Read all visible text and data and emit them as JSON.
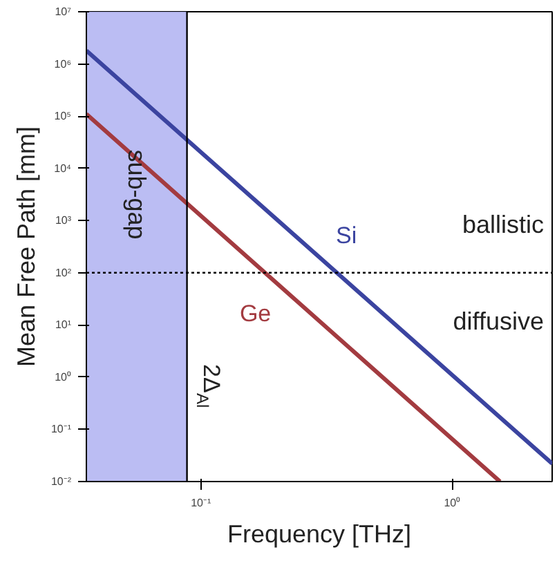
{
  "chart_data": {
    "type": "line",
    "xlabel": "Frequency [THz]",
    "ylabel": "Mean Free Path [mm]",
    "log": "xy",
    "grid": false,
    "line_style": "solid",
    "marker": "none",
    "xlim": [
      0.035,
      2.5
    ],
    "ylim": [
      0.01,
      10000000
    ],
    "xticks": [
      {
        "value": 0.1,
        "label": "10⁻¹"
      },
      {
        "value": 1,
        "label": "10⁰"
      }
    ],
    "yticks": [
      {
        "value": 0.01,
        "label": "10⁻²"
      },
      {
        "value": 0.1,
        "label": "10⁻¹"
      },
      {
        "value": 1,
        "label": "10⁰"
      },
      {
        "value": 10,
        "label": "10¹"
      },
      {
        "value": 100,
        "label": "10²"
      },
      {
        "value": 1000,
        "label": "10³"
      },
      {
        "value": 10000,
        "label": "10⁴"
      },
      {
        "value": 100000,
        "label": "10⁵"
      },
      {
        "value": 1000000,
        "label": "10⁶"
      },
      {
        "value": 10000000,
        "label": "10⁷"
      }
    ],
    "series": [
      {
        "name": "Si",
        "color": "#3b44a0",
        "x": [
          0.035,
          2.5
        ],
        "values": [
          1800000,
          0.022
        ]
      },
      {
        "name": "Ge",
        "color": "#a33b40",
        "x": [
          0.035,
          1.55
        ],
        "values": [
          110000,
          0.01
        ]
      }
    ],
    "bands": [
      {
        "axis": "x",
        "from": 0.035,
        "to": 0.088,
        "label": "sub-gap",
        "color": "#b4b6f2"
      }
    ],
    "ref_lines": [
      {
        "axis": "x",
        "value": 0.088,
        "label": "2Δ$_{Al}$",
        "color": "#000000",
        "line_style": "solid"
      },
      {
        "axis": "y",
        "value": 100,
        "label": null,
        "color": "#000000",
        "line_style": "dotted"
      }
    ],
    "annotations": [
      "ballistic",
      "diffusive"
    ]
  }
}
